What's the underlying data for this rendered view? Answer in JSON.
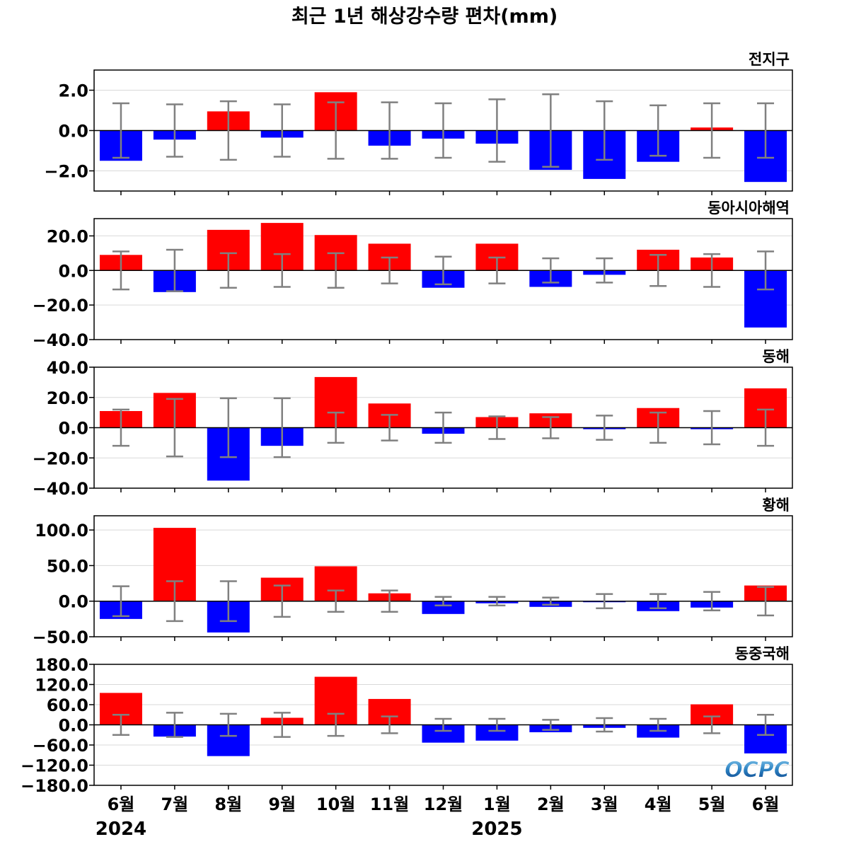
{
  "chart_data": {
    "type": "bar",
    "title": "최근 1년 해상강수량 편차(mm)",
    "categories": [
      "6월",
      "7월",
      "8월",
      "9월",
      "10월",
      "11월",
      "12월",
      "1월",
      "2월",
      "3월",
      "4월",
      "5월",
      "6월"
    ],
    "year_labels": [
      {
        "index": 0,
        "label": "2024"
      },
      {
        "index": 7,
        "label": "2025"
      }
    ],
    "colors": {
      "positive": "#ff0000",
      "negative": "#0000ff",
      "error_bar": "#808080",
      "zero_line": "#000000",
      "grid": "#d9d9d9"
    },
    "grid": true,
    "panels": [
      {
        "name": "전지구",
        "ylim": [
          -3.0,
          3.0
        ],
        "yticks": [
          2.0,
          0.0,
          -2.0
        ],
        "ytick_labels": [
          "2.0",
          "0.0",
          "−2.0"
        ],
        "values": [
          -1.5,
          -0.45,
          0.95,
          -0.35,
          1.9,
          -0.75,
          -0.4,
          -0.65,
          -1.95,
          -2.4,
          -1.55,
          0.15,
          -2.55
        ],
        "error": [
          1.35,
          1.3,
          1.45,
          1.3,
          1.4,
          1.4,
          1.35,
          1.55,
          1.8,
          1.45,
          1.25,
          1.35,
          1.35
        ]
      },
      {
        "name": "동아시아해역",
        "ylim": [
          -40.0,
          30.0
        ],
        "yticks": [
          20.0,
          0.0,
          -20.0,
          -40.0
        ],
        "ytick_labels": [
          "20.0",
          "0.0",
          "−20.0",
          "−40.0"
        ],
        "values": [
          9.0,
          -12.5,
          23.5,
          27.5,
          20.5,
          15.5,
          -10.0,
          15.5,
          -9.5,
          -2.5,
          12.0,
          7.5,
          -33.0
        ],
        "error": [
          11.0,
          12.0,
          10.0,
          9.5,
          10.0,
          7.5,
          8.0,
          7.5,
          7.0,
          7.0,
          9.0,
          9.5,
          11.0
        ]
      },
      {
        "name": "동해",
        "ylim": [
          -40.0,
          40.0
        ],
        "yticks": [
          40.0,
          20.0,
          0.0,
          -20.0,
          -40.0
        ],
        "ytick_labels": [
          "40.0",
          "20.0",
          "0.0",
          "−20.0",
          "−40.0"
        ],
        "values": [
          11.0,
          23.0,
          -35.0,
          -12.0,
          33.5,
          16.0,
          -4.0,
          7.0,
          9.5,
          -1.0,
          13.0,
          -1.0,
          26.0
        ],
        "error": [
          12.0,
          19.0,
          19.5,
          19.5,
          10.0,
          8.5,
          10.0,
          7.5,
          7.0,
          8.0,
          10.0,
          11.0,
          12.0
        ]
      },
      {
        "name": "황해",
        "ylim": [
          -50.0,
          120.0
        ],
        "yticks": [
          100.0,
          50.0,
          0.0,
          -50.0
        ],
        "ytick_labels": [
          "100.0",
          "50.0",
          "0.0",
          "−50.0"
        ],
        "values": [
          -25.0,
          103.0,
          -44.0,
          33.0,
          49.0,
          11.0,
          -18.0,
          -3.0,
          -8.0,
          -1.0,
          -14.0,
          -9.0,
          22.0
        ],
        "error": [
          21.0,
          28.0,
          28.0,
          22.0,
          15.0,
          15.0,
          6.0,
          6.0,
          5.0,
          10.0,
          10.0,
          13.0,
          20.0
        ]
      },
      {
        "name": "동중국해",
        "ylim": [
          -180.0,
          180.0
        ],
        "yticks": [
          180.0,
          120.0,
          60.0,
          0.0,
          -60.0,
          -120.0,
          -180.0
        ],
        "ytick_labels": [
          "180.0",
          "120.0",
          "60.0",
          "0.0",
          "−60.0",
          "−120.0",
          "−180.0"
        ],
        "values": [
          95.0,
          -35.0,
          -93.0,
          21.0,
          143.0,
          77.0,
          -53.0,
          -47.0,
          -22.0,
          -9.0,
          -38.0,
          61.0,
          -85.0
        ],
        "error": [
          30.0,
          36.0,
          33.0,
          36.0,
          33.0,
          25.0,
          18.0,
          18.0,
          15.0,
          20.0,
          18.0,
          25.0,
          30.0
        ]
      }
    ]
  },
  "logo": {
    "text": "OCPC",
    "name": "ocpc-logo"
  }
}
